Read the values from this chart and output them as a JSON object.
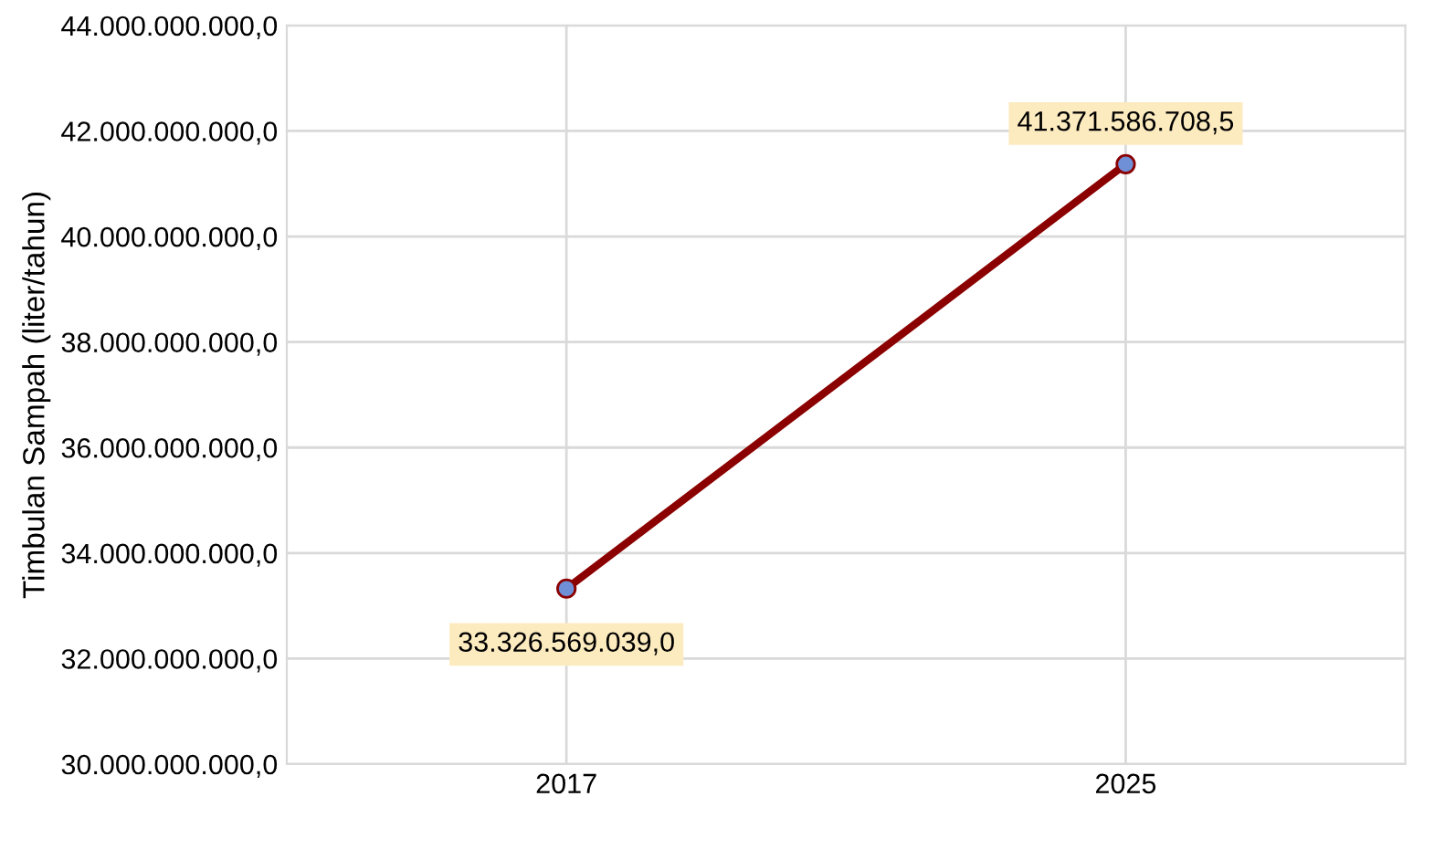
{
  "chart_data": {
    "type": "line",
    "ylabel": "Timbulan Sampah (liter/tahun)",
    "categories": [
      "2017",
      "2025"
    ],
    "series": [
      {
        "color": "#8b0000",
        "values": [
          33326569039.0,
          41371586708.5
        ],
        "value_labels": [
          "33.326.569.039,0",
          "41.371.586.708,5"
        ]
      }
    ],
    "ylim": [
      30000000000,
      44000000000
    ],
    "yticks": [
      {
        "value": 30000000000,
        "label": "30.000.000.000,0"
      },
      {
        "value": 32000000000,
        "label": "32.000.000.000,0"
      },
      {
        "value": 34000000000,
        "label": "34.000.000.000,0"
      },
      {
        "value": 36000000000,
        "label": "36.000.000.000,0"
      },
      {
        "value": 38000000000,
        "label": "38.000.000.000,0"
      },
      {
        "value": 40000000000,
        "label": "40.000.000.000,0"
      },
      {
        "value": 42000000000,
        "label": "42.000.000.000,0"
      },
      {
        "value": 44000000000,
        "label": "44.000.000.000,0"
      }
    ],
    "grid": true,
    "marker": "circle",
    "legend": false
  }
}
